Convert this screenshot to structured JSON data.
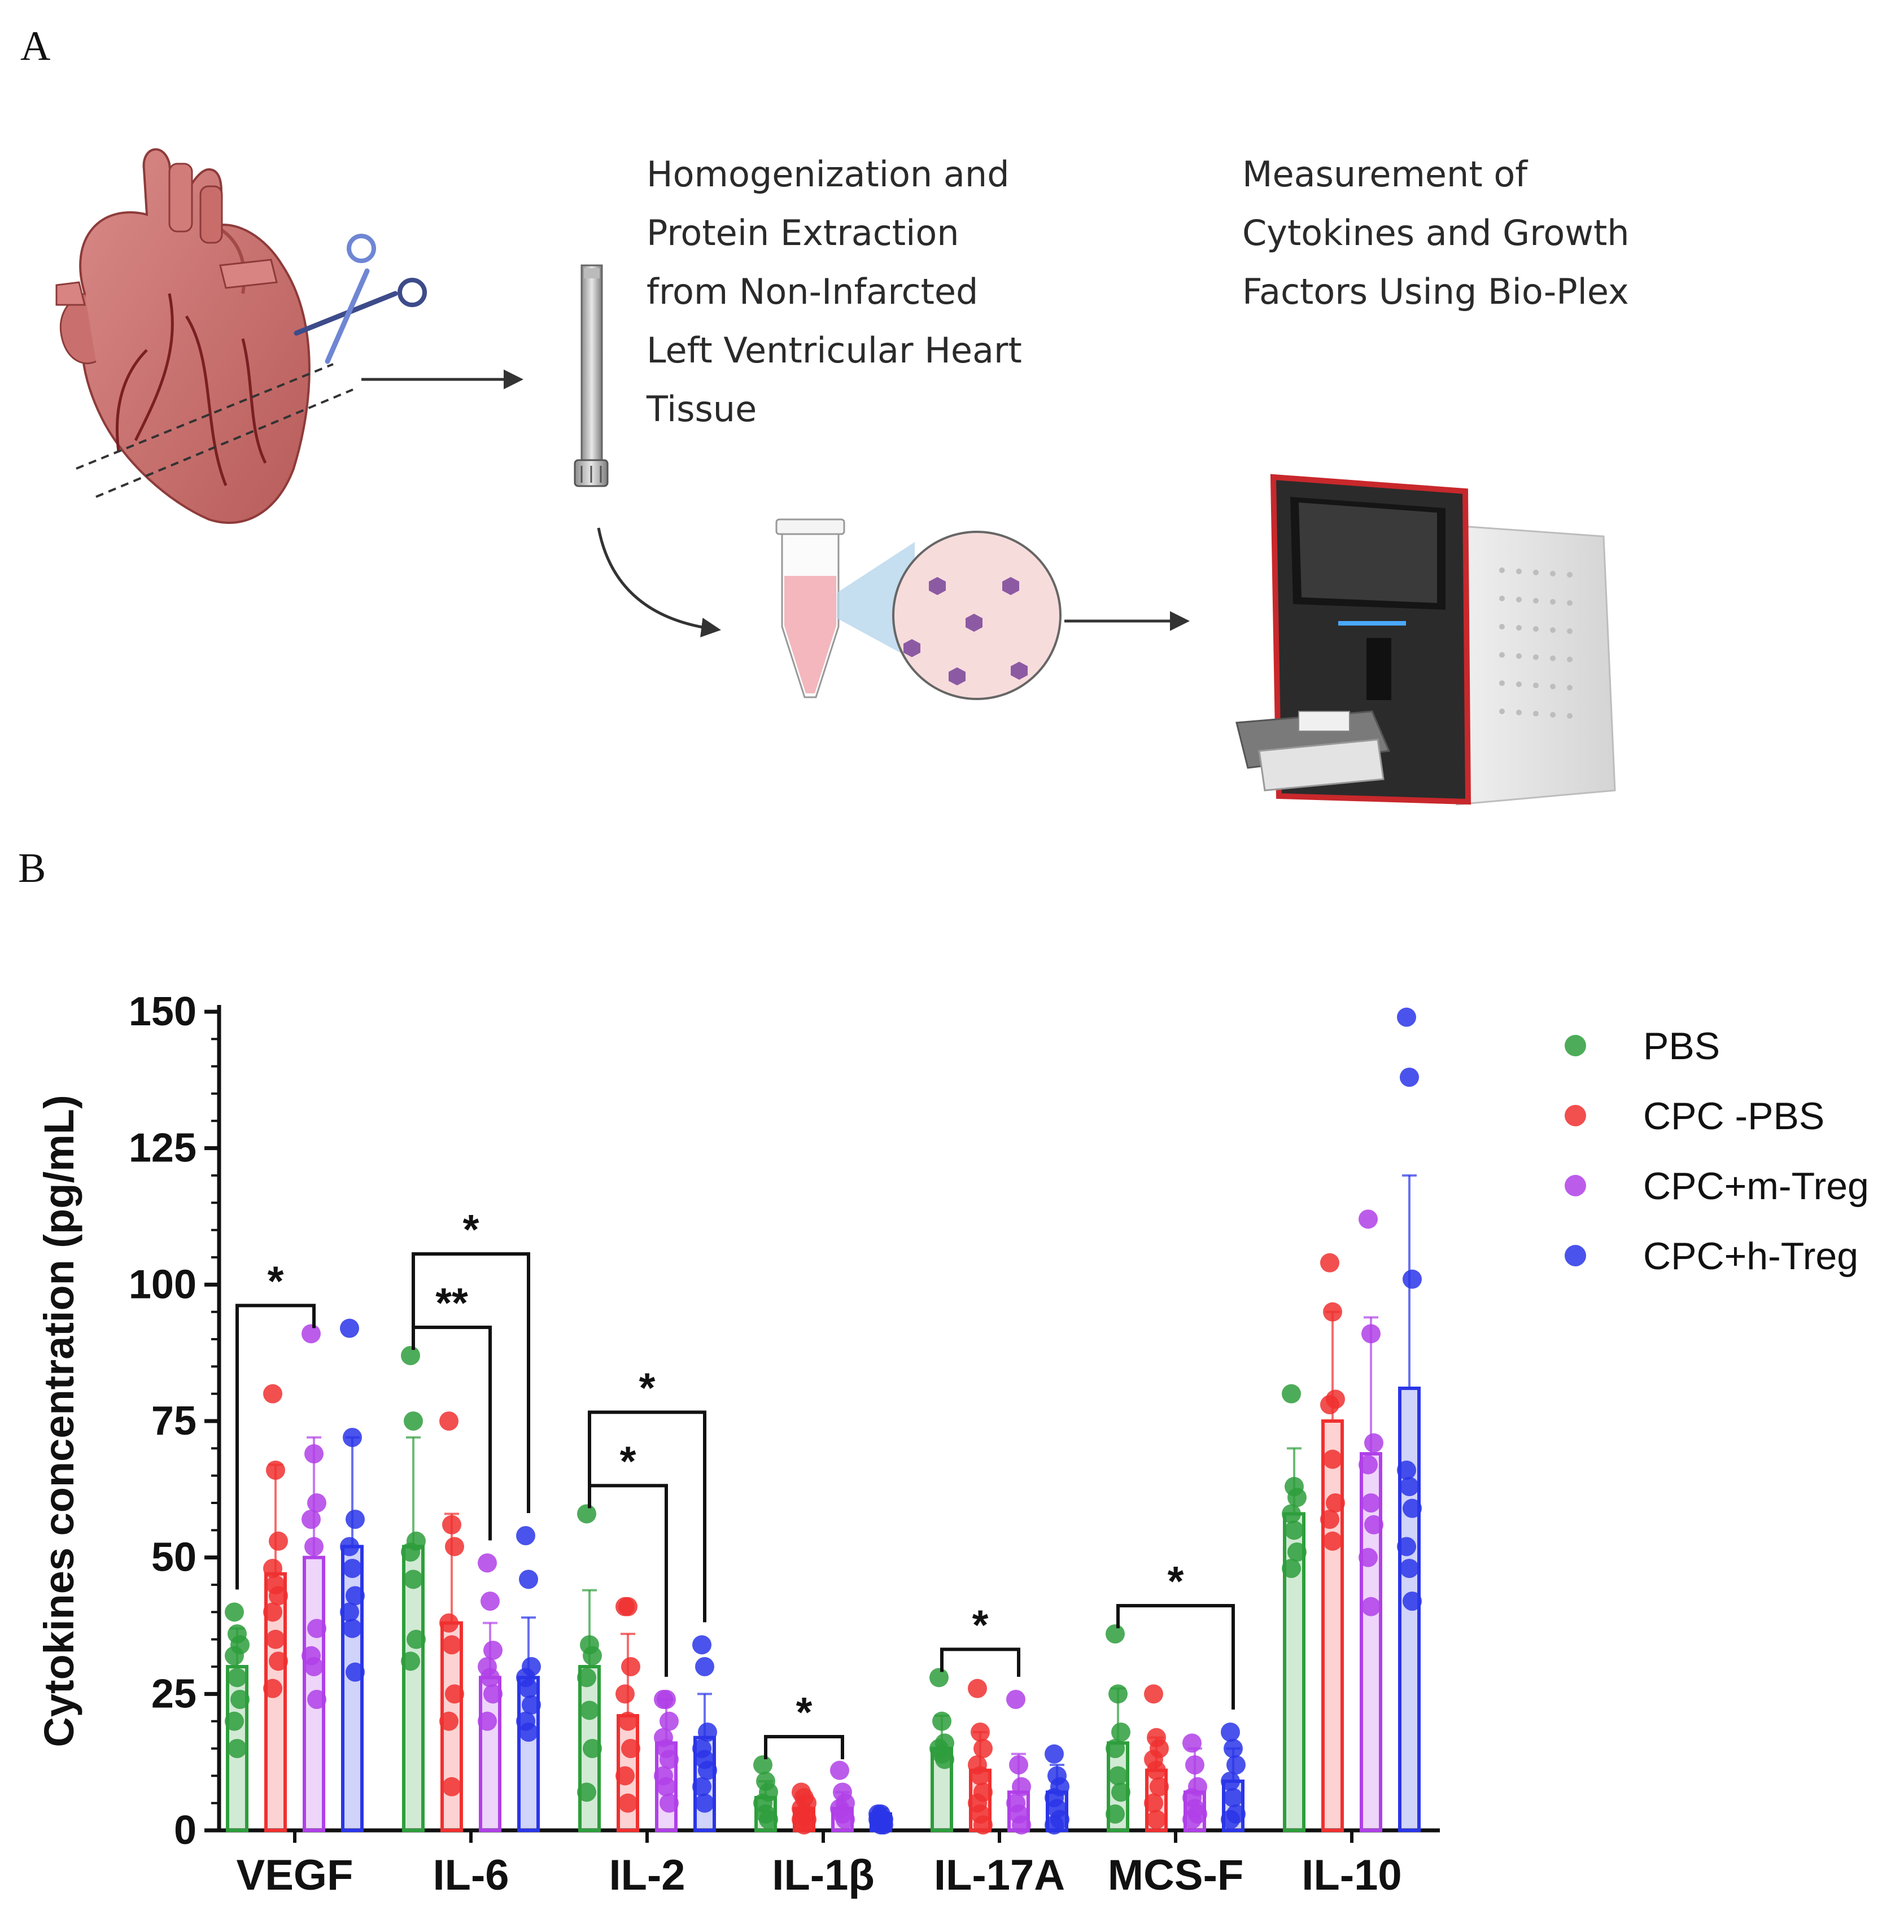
{
  "panel_a": {
    "letter": "A",
    "step1": [
      "Homogenization and",
      "Protein Extraction",
      "from Non-Infarcted",
      "Left Ventricular Heart",
      "Tissue"
    ],
    "step2": [
      "Measurement of",
      "Cytokines and Growth",
      "Factors Using Bio-Plex"
    ]
  },
  "panel_b": {
    "letter": "B"
  },
  "colors": {
    "PBS": "#2e9e3c",
    "CPC -PBS": "#f03030",
    "CPC+m-Treg": "#b040e8",
    "CPC+h-Treg": "#2a35e8"
  },
  "chart_data": {
    "type": "bar",
    "title": "",
    "xlabel": "",
    "ylabel": "Cytokines concentration (pg/mL)",
    "ylim": [
      0,
      150
    ],
    "yticks": [
      0,
      25,
      50,
      75,
      100,
      125,
      150
    ],
    "y_tick_labels": [
      "0",
      "25",
      "50",
      "75",
      "100",
      "125",
      "150"
    ],
    "legend_position": "top-right",
    "categories": [
      "VEGF",
      "IL-6",
      "IL-2",
      "IL-1β",
      "IL-17A",
      "MCS-F",
      "IL-10"
    ],
    "series": [
      {
        "name": "PBS",
        "values": [
          30,
          52,
          30,
          6,
          15,
          16,
          58
        ],
        "errors": [
          7,
          20,
          14,
          3,
          6,
          10,
          12
        ],
        "points": [
          [
            40,
            36,
            34,
            32,
            28,
            24,
            20,
            15
          ],
          [
            87,
            75,
            53,
            51,
            46,
            35,
            31
          ],
          [
            58,
            34,
            32,
            28,
            22,
            15,
            7
          ],
          [
            12,
            9,
            7,
            5,
            3,
            2
          ],
          [
            28,
            20,
            16,
            15,
            14,
            13
          ],
          [
            36,
            25,
            18,
            15,
            10,
            7,
            3
          ],
          [
            80,
            63,
            61,
            58,
            55,
            51,
            48
          ]
        ]
      },
      {
        "name": "CPC -PBS",
        "values": [
          47,
          38,
          21,
          4,
          11,
          11,
          75
        ],
        "errors": [
          20,
          20,
          15,
          2,
          7,
          6,
          20
        ],
        "points": [
          [
            80,
            66,
            53,
            48,
            45,
            43,
            40,
            35,
            31,
            26
          ],
          [
            75,
            56,
            52,
            38,
            34,
            25,
            20,
            8
          ],
          [
            41,
            41,
            30,
            25,
            20,
            15,
            10,
            5
          ],
          [
            7,
            6,
            5,
            4,
            3,
            2,
            2,
            1
          ],
          [
            26,
            18,
            15,
            12,
            10,
            7,
            5,
            3,
            1
          ],
          [
            25,
            17,
            15,
            13,
            11,
            8,
            5,
            2
          ],
          [
            104,
            95,
            79,
            78,
            68,
            60,
            57,
            53
          ]
        ]
      },
      {
        "name": "CPC+m-Treg",
        "values": [
          50,
          28,
          16,
          4,
          7,
          7,
          69
        ],
        "errors": [
          22,
          10,
          8,
          3,
          7,
          8,
          25
        ],
        "points": [
          [
            91,
            69,
            60,
            57,
            52,
            37,
            32,
            30,
            24
          ],
          [
            49,
            42,
            33,
            30,
            28,
            25,
            20
          ],
          [
            24,
            24,
            20,
            17,
            15,
            13,
            10,
            8,
            5
          ],
          [
            11,
            7,
            5,
            4,
            3,
            2
          ],
          [
            24,
            12,
            8,
            5,
            3,
            1
          ],
          [
            16,
            12,
            8,
            6,
            4,
            3,
            2
          ],
          [
            112,
            91,
            71,
            67,
            60,
            56,
            50,
            41
          ]
        ]
      },
      {
        "name": "CPC+h-Treg",
        "values": [
          52,
          28,
          17,
          3,
          7,
          9,
          81
        ],
        "errors": [
          20,
          11,
          8,
          1,
          5,
          6,
          39
        ],
        "points": [
          [
            92,
            72,
            57,
            52,
            48,
            43,
            40,
            37,
            29
          ],
          [
            54,
            46,
            30,
            28,
            26,
            23,
            20,
            18
          ],
          [
            34,
            30,
            18,
            15,
            13,
            11,
            8,
            5
          ],
          [
            3,
            3,
            2,
            2,
            1,
            1
          ],
          [
            14,
            10,
            8,
            6,
            4,
            2,
            1
          ],
          [
            18,
            15,
            12,
            9,
            6,
            3,
            2
          ],
          [
            149,
            138,
            101,
            66,
            63,
            59,
            52,
            48,
            42
          ]
        ]
      }
    ],
    "significance": [
      {
        "category": "VEGF",
        "from": "PBS",
        "to": "CPC+m-Treg",
        "label": "*",
        "level": 1
      },
      {
        "category": "IL-6",
        "from": "PBS",
        "to": "CPC+m-Treg",
        "label": "**",
        "level": 1
      },
      {
        "category": "IL-6",
        "from": "PBS",
        "to": "CPC+h-Treg",
        "label": "*",
        "level": 2
      },
      {
        "category": "IL-2",
        "from": "PBS",
        "to": "CPC+m-Treg",
        "label": "*",
        "level": 1
      },
      {
        "category": "IL-2",
        "from": "PBS",
        "to": "CPC+h-Treg",
        "label": "*",
        "level": 2
      },
      {
        "category": "IL-1β",
        "from": "PBS",
        "to": "CPC+m-Treg",
        "label": "*",
        "level": 1
      },
      {
        "category": "IL-17A",
        "from": "PBS",
        "to": "CPC+m-Treg",
        "label": "*",
        "level": 1
      },
      {
        "category": "MCS-F",
        "from": "PBS",
        "to": "CPC+h-Treg",
        "label": "*",
        "level": 1
      }
    ]
  }
}
